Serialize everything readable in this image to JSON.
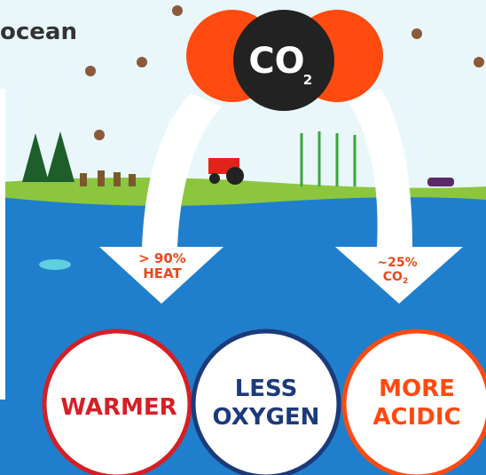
{
  "subtitle": "ocean",
  "molecule": {
    "formula": "CO",
    "subscript": "2"
  },
  "arrows": [
    {
      "line1": "> 90%",
      "line2": "HEAT"
    },
    {
      "line1": "~25%",
      "line2": "CO",
      "line2_sub": "2"
    }
  ],
  "effects": [
    {
      "line1": "WARMER"
    },
    {
      "line1": "LESS",
      "line2": "OXYGEN"
    },
    {
      "line1": "MORE",
      "line2": "ACIDIC"
    }
  ]
}
